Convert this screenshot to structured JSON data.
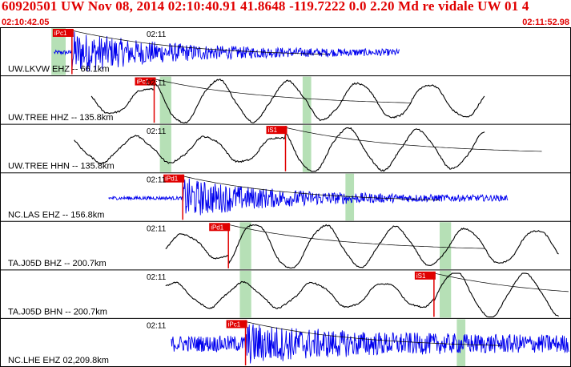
{
  "header": {
    "title": "60920501 UW Nov 08, 2014 02:10:40.91   41.8648 -119.7222  0.0 2.20 Md re vidale UW 01   4",
    "time_start": "02:10:42.05",
    "time_end": "02:11:52.98"
  },
  "colors": {
    "header_text": "#e00000",
    "seismogram_blue": "#0000ee",
    "seismogram_black": "#000000",
    "pick_marker": "#e00000",
    "window_highlight": "#b6e0b6"
  },
  "traces": [
    {
      "label": "UW.LKVW EHZ -- 66.1km",
      "tick": "02:11",
      "color": "blue",
      "pick_label": "iPc1",
      "pick_t": 0.126,
      "amplitude": 0.9,
      "start_t": 0.095,
      "end_t": 0.7,
      "noise": 0.08,
      "dominant": "high"
    },
    {
      "label": "UW.TREE HHZ -- 135.8km",
      "tick": "02:11",
      "color": "black",
      "pick_label": "iPc1",
      "pick_t": 0.27,
      "amplitude": 0.7,
      "start_t": 0.16,
      "end_t": 0.85,
      "noise": 0.15,
      "dominant": "low"
    },
    {
      "label": "UW.TREE HHN -- 135.8km",
      "tick": "02:11",
      "color": "black",
      "pick_label": "iS1",
      "pick_t": 0.5,
      "amplitude": 0.7,
      "start_t": 0.13,
      "end_t": 0.85,
      "noise": 0.15,
      "dominant": "low"
    },
    {
      "label": "NC.LAS EHZ -- 156.8km",
      "tick": "02:11",
      "color": "blue",
      "pick_label": "iPd1",
      "pick_t": 0.32,
      "amplitude": 0.85,
      "start_t": 0.19,
      "end_t": 0.89,
      "noise": 0.06,
      "dominant": "high"
    },
    {
      "label": "TA.J05D BHZ -- 200.7km",
      "tick": "02:11",
      "color": "black",
      "pick_label": "iPd1",
      "pick_t": 0.4,
      "amplitude": 0.8,
      "start_t": 0.29,
      "end_t": 0.98,
      "noise": 0.12,
      "dominant": "low"
    },
    {
      "label": "TA.J05D BHN -- 200.7km",
      "tick": "02:11",
      "color": "black",
      "pick_label": "iS1",
      "pick_t": 0.76,
      "amplitude": 0.8,
      "start_t": 0.29,
      "end_t": 0.98,
      "noise": 0.12,
      "dominant": "low"
    },
    {
      "label": "NC.LHE EHZ 02,209.8km",
      "tick": "02:11",
      "color": "blue",
      "pick_label": "iPc1",
      "pick_t": 0.43,
      "amplitude": 0.6,
      "start_t": 0.3,
      "end_t": 1.0,
      "noise": 0.35,
      "dominant": "high"
    }
  ]
}
